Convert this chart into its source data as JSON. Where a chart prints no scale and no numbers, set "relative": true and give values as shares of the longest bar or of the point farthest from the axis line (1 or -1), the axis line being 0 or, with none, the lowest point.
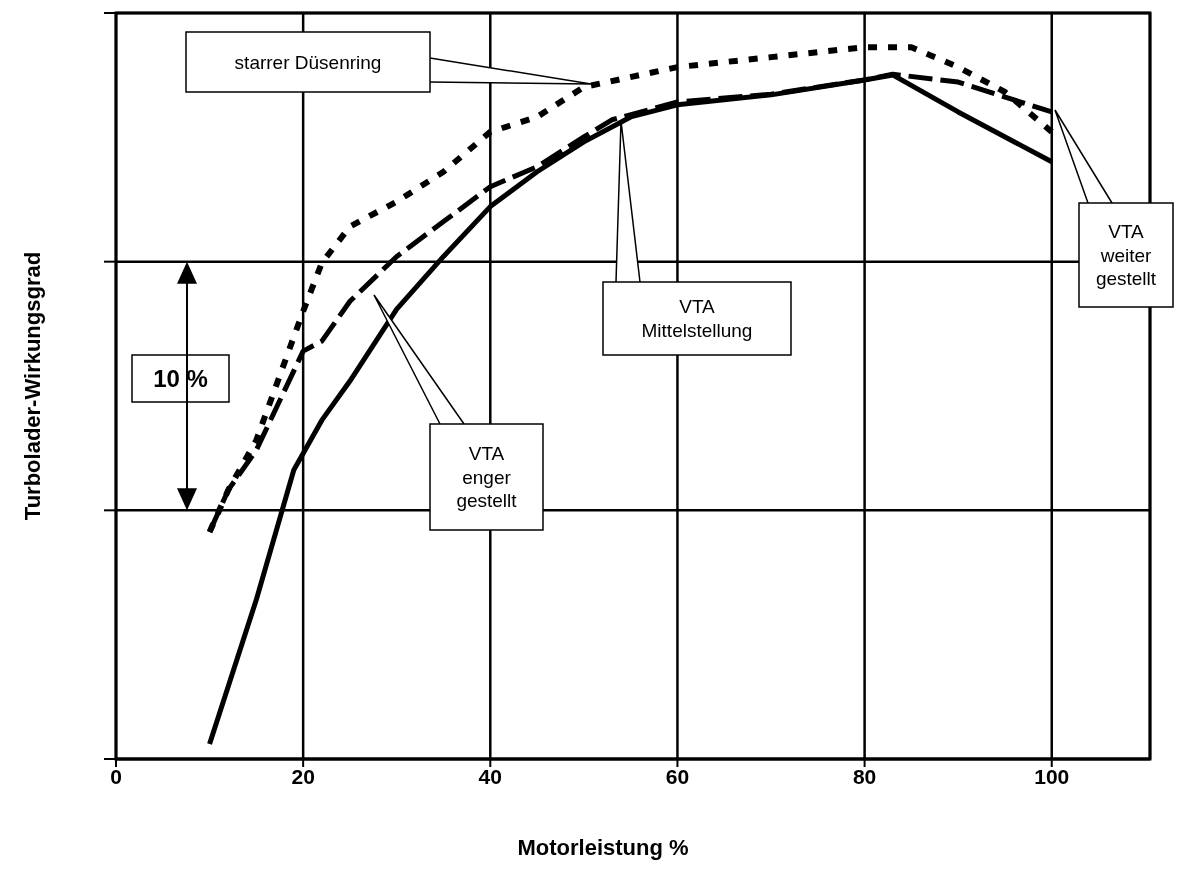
{
  "chart_data": {
    "type": "line",
    "relative": true,
    "xlabel": "Motorleistung %",
    "ylabel": "Turbolader-Wirkungsgrad",
    "xlim": [
      0,
      110.5
    ],
    "xticks": [
      0,
      20,
      40,
      60,
      80,
      100
    ],
    "grid": true,
    "legend": false,
    "marker": "none",
    "series": [
      {
        "color": "#000000",
        "line_style": "solid",
        "x": [
          10,
          15,
          19,
          22,
          25,
          30,
          35,
          40,
          45,
          50,
          55,
          60,
          70,
          80,
          83,
          90,
          100
        ],
        "values": [
          0.021,
          0.224,
          0.406,
          0.476,
          0.531,
          0.632,
          0.706,
          0.776,
          0.825,
          0.867,
          0.902,
          0.919,
          0.933,
          0.954,
          0.961,
          0.909,
          0.839
        ]
      },
      {
        "color": "#000000",
        "line_style": "dashed",
        "x": [
          10,
          12,
          15,
          20,
          22,
          25,
          30,
          35,
          40,
          45,
          50,
          53,
          60,
          70,
          80,
          83,
          90,
          100
        ],
        "values": [
          0.319,
          0.378,
          0.434,
          0.573,
          0.587,
          0.643,
          0.706,
          0.755,
          0.804,
          0.832,
          0.874,
          0.898,
          0.923,
          0.934,
          0.954,
          0.962,
          0.951,
          0.909
        ]
      },
      {
        "color": "#000000",
        "line_style": "dotted",
        "x": [
          10,
          12,
          15,
          20,
          22,
          25,
          30,
          35,
          40,
          45,
          50,
          60,
          70,
          80,
          85,
          90,
          95,
          100
        ],
        "values": [
          0.319,
          0.378,
          0.448,
          0.629,
          0.697,
          0.748,
          0.783,
          0.825,
          0.881,
          0.902,
          0.944,
          0.972,
          0.986,
          1,
          1,
          0.972,
          0.937,
          0.881
        ]
      }
    ],
    "annotations": [
      "starrer Düsenring",
      "VTA\nMittelstellung",
      "VTA\nenger\ngestellt",
      "VTA\nweiter\ngestellt",
      "10 %"
    ]
  }
}
